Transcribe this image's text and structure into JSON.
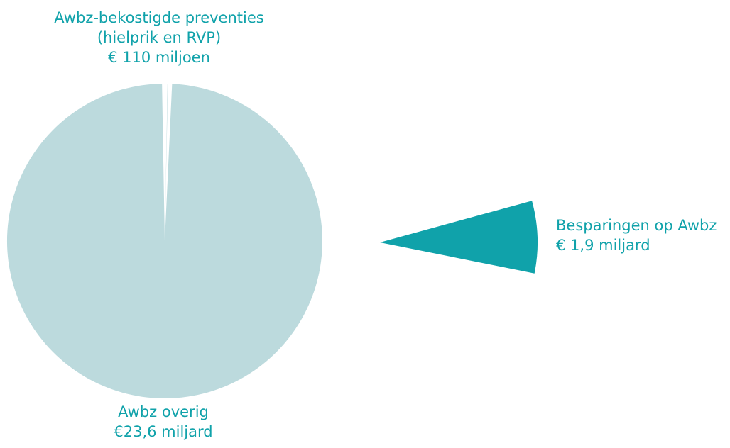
{
  "chart_data": {
    "type": "pie",
    "title": "",
    "legend": "none",
    "slices": [
      {
        "id": "preventie",
        "label_lines": [
          "Awbz-bekostigde preventies",
          "(hielprik en RVP)",
          "€ 110 miljoen"
        ],
        "value": 0.11,
        "unit": "miljard euro",
        "color": "#bcdadd",
        "exploded": false
      },
      {
        "id": "overig",
        "label_lines": [
          "Awbz overig",
          "€23,6 miljard"
        ],
        "value": 23.6,
        "unit": "miljard euro",
        "color": "#bcdadd",
        "exploded": false
      },
      {
        "id": "besparingen",
        "label_lines": [
          "Besparingen op Awbz",
          "€ 1,9 miljard"
        ],
        "value": 1.9,
        "unit": "miljard euro",
        "color": "#10a2aa",
        "exploded": true
      }
    ],
    "label_color": "#10a2aa",
    "separator_color": "#ffffff"
  }
}
